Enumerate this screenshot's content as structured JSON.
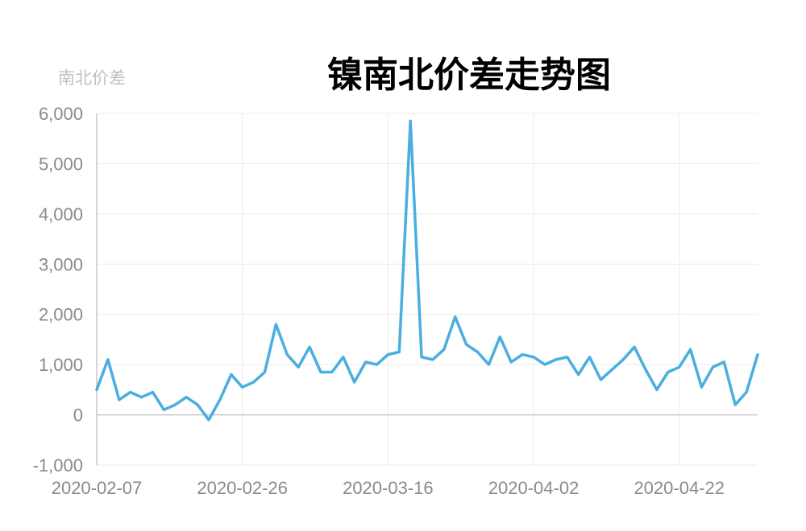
{
  "chart_data": {
    "type": "line",
    "title": "镍南北价差走势图",
    "ylabel": "南北价差",
    "xlabel": "",
    "ylim": [
      -1000,
      6000
    ],
    "yticks": [
      -1000,
      0,
      1000,
      2000,
      3000,
      4000,
      5000,
      6000
    ],
    "ytick_labels": [
      "-1,000",
      "0",
      "1,000",
      "2,000",
      "3,000",
      "4,000",
      "5,000",
      "6,000"
    ],
    "xtick_labels": [
      "2020-02-07",
      "2020-02-26",
      "2020-03-16",
      "2020-04-02",
      "2020-04-22"
    ],
    "xtick_indices": [
      0,
      13,
      26,
      39,
      52
    ],
    "grid": true,
    "legend": "none",
    "color": "#4aaedf",
    "series": [
      {
        "values": [
          500,
          1100,
          300,
          450,
          350,
          450,
          100,
          200,
          350,
          200,
          -100,
          300,
          800,
          550,
          650,
          850,
          1800,
          1200,
          950,
          1350,
          850,
          850,
          1150,
          650,
          1050,
          1000,
          1200,
          1250,
          5850,
          1150,
          1100,
          1300,
          1950,
          1400,
          1250,
          1000,
          1550,
          1050,
          1200,
          1150,
          1000,
          1100,
          1150,
          800,
          1150,
          700,
          900,
          1100,
          1350,
          900,
          500,
          850,
          950,
          1300,
          550,
          950,
          1050,
          200,
          450,
          1200
        ]
      }
    ]
  }
}
